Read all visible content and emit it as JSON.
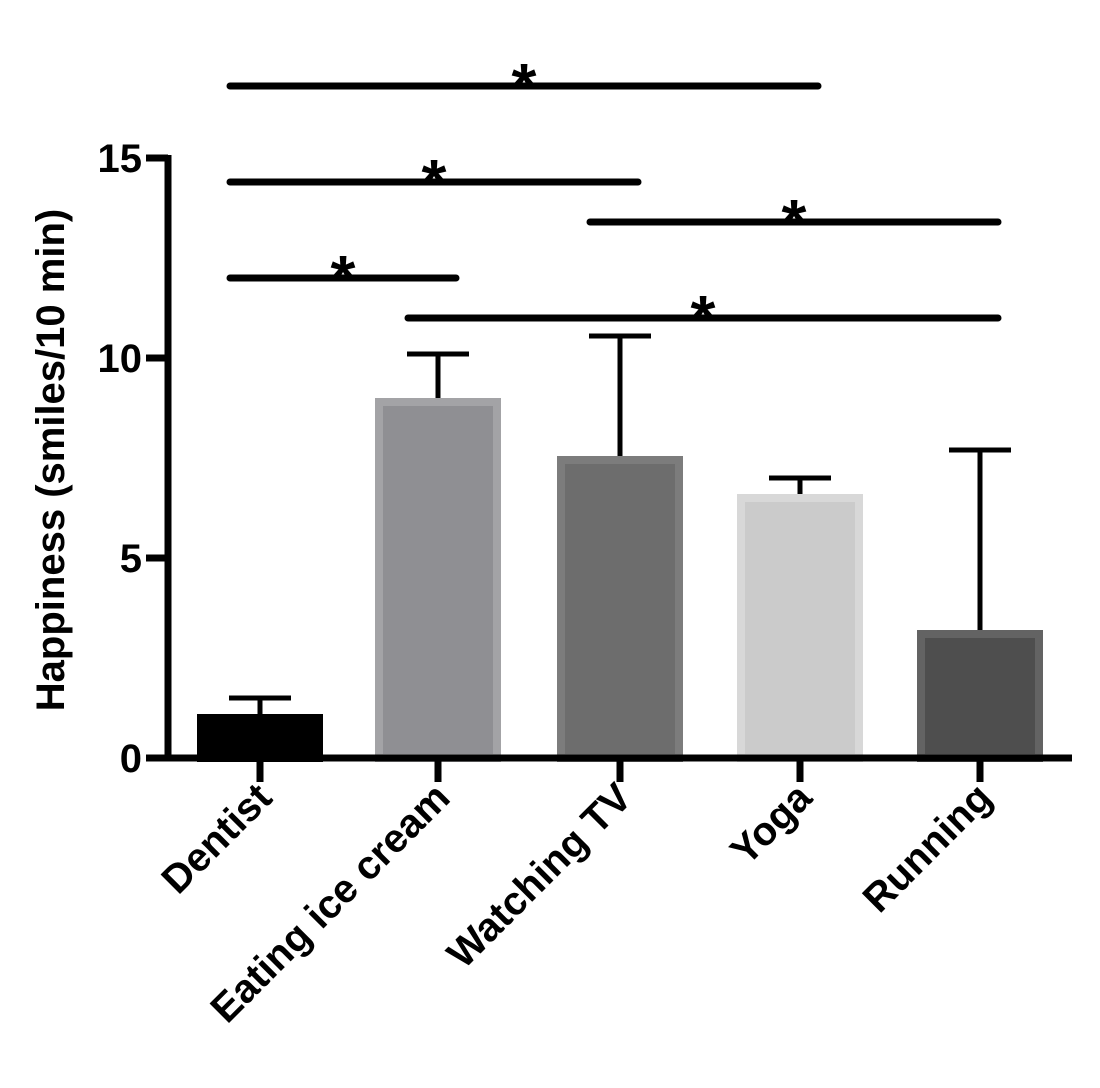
{
  "chart_data": {
    "type": "bar",
    "title": "",
    "xlabel": "",
    "ylabel": "Happiness (smiles/10 min)",
    "ylim": [
      0,
      15
    ],
    "yticks": [
      0,
      5,
      10,
      15
    ],
    "categories": [
      "Dentist",
      "Eating ice cream",
      "Watching TV",
      "Yoga",
      "Running"
    ],
    "values": [
      1.1,
      9.0,
      7.55,
      6.6,
      3.2
    ],
    "error_upper": [
      1.5,
      10.1,
      10.55,
      7.0,
      7.7
    ],
    "colors": [
      "#000000",
      "#8f8f93",
      "#6d6d6d",
      "#cbcbcb",
      "#4e4e4e"
    ],
    "border_colors": [
      "#000000",
      "#a3a3a6",
      "#7c7c7c",
      "#d8d8d8",
      "#636363"
    ],
    "significance": [
      {
        "from": 0,
        "to": 3,
        "y": 16.8,
        "label": "*"
      },
      {
        "from": 0,
        "to": 2,
        "y": 14.4,
        "label": "*"
      },
      {
        "from": 2,
        "to": 4,
        "y": 13.4,
        "label": "*"
      },
      {
        "from": 0,
        "to": 1,
        "y": 12.0,
        "label": "*"
      },
      {
        "from": 1,
        "to": 4,
        "y": 11.0,
        "label": "*"
      }
    ],
    "grid": false,
    "legend": "none"
  }
}
